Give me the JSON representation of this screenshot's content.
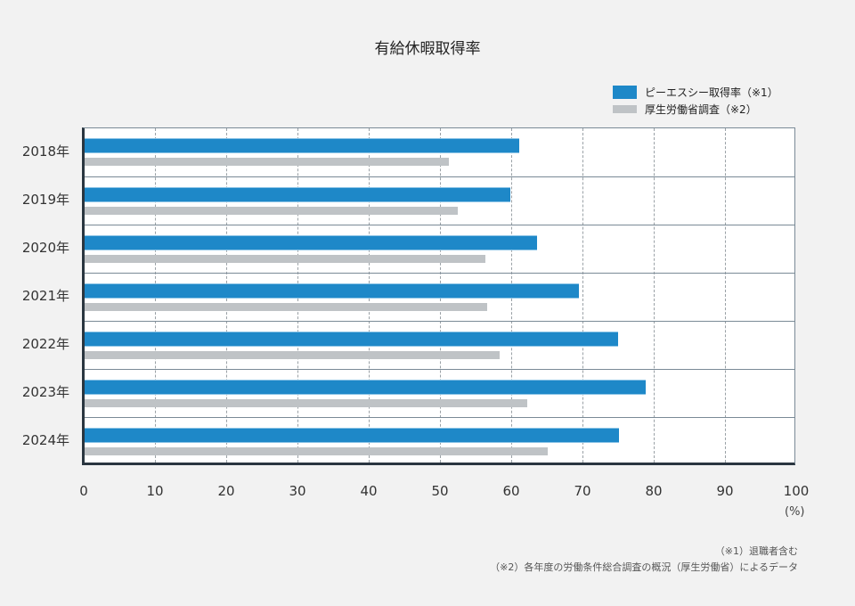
{
  "title": "有給休暇取得率",
  "legend": [
    {
      "label": "ピーエスシー取得率（※1）",
      "color": "#1e88c8"
    },
    {
      "label": "厚生労働省調査（※2）",
      "color": "#bfc3c6"
    }
  ],
  "x_ticks": [
    "0",
    "10",
    "20",
    "30",
    "40",
    "50",
    "60",
    "70",
    "80",
    "90",
    "100"
  ],
  "x_unit": "(%)",
  "y_labels": [
    "2018年",
    "2019年",
    "2020年",
    "2021年",
    "2022年",
    "2023年",
    "2024年"
  ],
  "notes": [
    "（※1）退職者含む",
    "（※2）各年度の労働条件総合調査の概況（厚生労働省）によるデータ"
  ],
  "chart_data": {
    "type": "bar",
    "orientation": "horizontal",
    "title": "有給休暇取得率",
    "categories": [
      "2018年",
      "2019年",
      "2020年",
      "2021年",
      "2022年",
      "2023年",
      "2024年"
    ],
    "series": [
      {
        "name": "ピーエスシー取得率（※1）",
        "color": "#1e88c8",
        "values": [
          61.0,
          59.8,
          63.5,
          69.4,
          74.9,
          78.8,
          75.0
        ]
      },
      {
        "name": "厚生労働省調査（※2）",
        "color": "#bfc3c6",
        "values": [
          51.1,
          52.4,
          56.3,
          56.5,
          58.3,
          62.1,
          65.0
        ]
      }
    ],
    "xlabel": "(%)",
    "ylabel": "",
    "xlim": [
      0,
      100
    ],
    "x_ticks": [
      0,
      10,
      20,
      30,
      40,
      50,
      60,
      70,
      80,
      90,
      100
    ],
    "grid": "vertical dashed every 10",
    "legend_position": "top-right"
  }
}
